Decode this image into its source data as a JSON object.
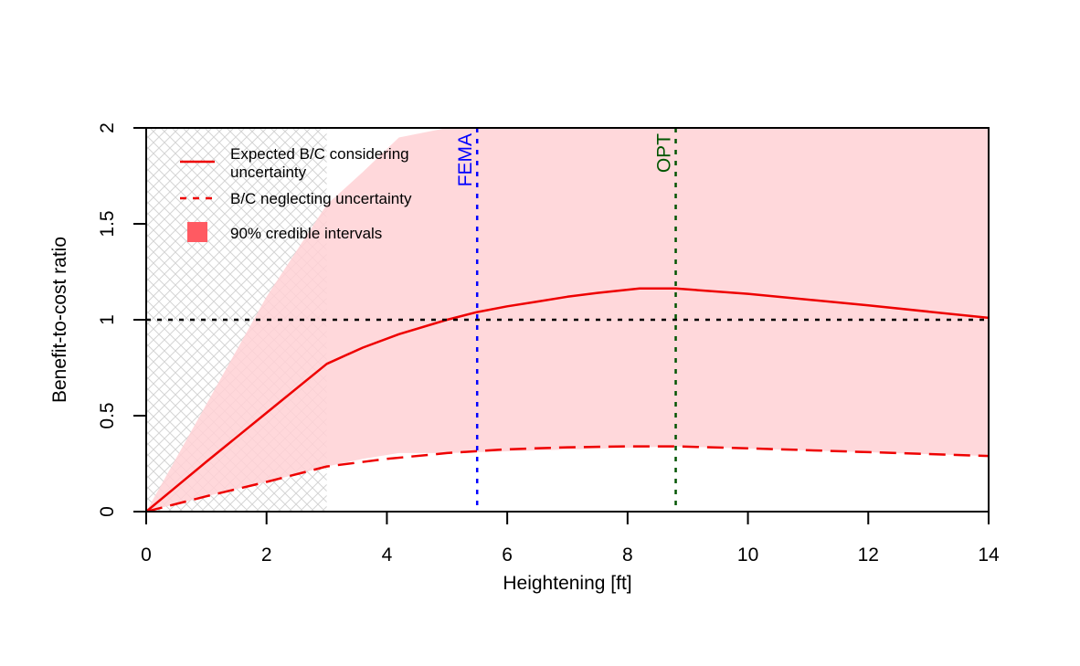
{
  "chart_data": {
    "type": "line",
    "xlabel": "Heightening [ft]",
    "ylabel": "Benefit-to-cost ratio",
    "xlim": [
      0,
      14
    ],
    "ylim": [
      0,
      2
    ],
    "xticks": [
      "0",
      "2",
      "4",
      "6",
      "8",
      "10",
      "12",
      "14"
    ],
    "yticks": [
      "0",
      "0.5",
      "1",
      "1.5",
      "2"
    ],
    "grid": false,
    "legend_position": "top-left",
    "series": [
      {
        "name": "Expected B/C considering uncertainty",
        "style": "solid",
        "color": "#ee0000",
        "x": [
          0,
          1,
          2,
          3,
          3.6,
          4.2,
          5,
          5.5,
          6,
          6.5,
          7,
          7.5,
          8.2,
          8.8,
          10,
          12,
          14
        ],
        "y": [
          0,
          0.26,
          0.515,
          0.77,
          0.855,
          0.925,
          1.0,
          1.04,
          1.07,
          1.095,
          1.12,
          1.14,
          1.163,
          1.163,
          1.135,
          1.075,
          1.01
        ]
      },
      {
        "name": "B/C neglecting uncertainty",
        "style": "dashed",
        "color": "#ee0000",
        "x": [
          0,
          1,
          2,
          3,
          4,
          5,
          6,
          7,
          8,
          8.8,
          10,
          12,
          14
        ],
        "y": [
          0,
          0.08,
          0.155,
          0.235,
          0.275,
          0.305,
          0.325,
          0.335,
          0.34,
          0.34,
          0.33,
          0.31,
          0.29
        ]
      }
    ],
    "band": {
      "name": "90% credible intervals",
      "color": "#ffd1d5",
      "legend_color": "#ff5a62",
      "x": [
        0,
        1,
        2,
        3,
        3.6,
        4.2,
        5,
        8.8,
        14
      ],
      "upper": [
        0,
        0.56,
        1.12,
        1.6,
        1.77,
        1.95,
        2.0,
        2.0,
        2.0
      ],
      "lower": [
        0,
        0.08,
        0.155,
        0.235,
        0.275,
        0.305,
        0.305,
        0.34,
        0.29
      ]
    },
    "hatched_region": {
      "x_from": 0,
      "x_to": 3
    },
    "reference_lines": [
      {
        "orientation": "horizontal",
        "value": 1,
        "color": "#000000",
        "style": "dotted",
        "label": ""
      },
      {
        "orientation": "vertical",
        "value": 5.5,
        "color": "#0000ff",
        "style": "dotted",
        "label": "FEMA"
      },
      {
        "orientation": "vertical",
        "value": 8.8,
        "color": "#005500",
        "style": "dotted",
        "label": "OPT"
      }
    ],
    "legend": [
      {
        "kind": "line-solid",
        "color": "#ee0000",
        "lines": [
          "Expected B/C considering",
          " uncertainty"
        ]
      },
      {
        "kind": "line-dashed",
        "color": "#ee0000",
        "lines": [
          "B/C neglecting uncertainty"
        ]
      },
      {
        "kind": "fill",
        "color": "#ff5a62",
        "lines": [
          "90% credible intervals"
        ]
      }
    ]
  }
}
